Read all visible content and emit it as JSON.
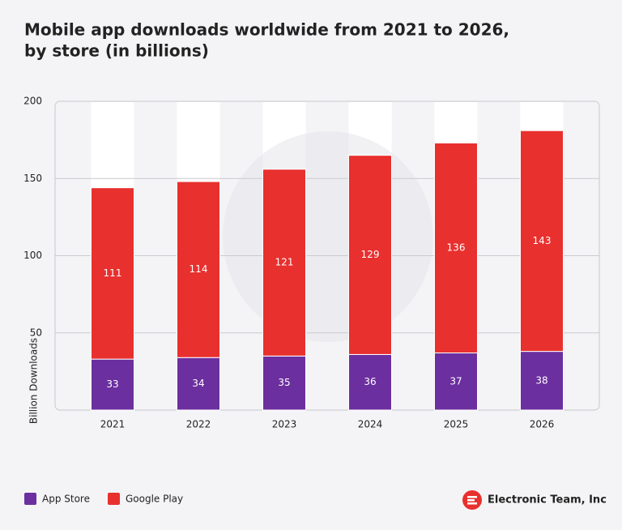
{
  "chart_data": {
    "type": "stacked_bar",
    "title": [
      "Mobile app downloads worldwide from 2021 to 2026,",
      "by store (in billions)"
    ],
    "y_label": "Billion Downloads",
    "categories": [
      "2021",
      "2022",
      "2023",
      "2024",
      "2025",
      "2026"
    ],
    "series": [
      {
        "name": "App Store",
        "color": "#6b2f9f",
        "values": [
          33,
          34,
          35,
          36,
          37,
          38
        ]
      },
      {
        "name": "Google Play",
        "color": "#e8302e",
        "values": [
          111,
          114,
          121,
          129,
          136,
          143
        ]
      }
    ],
    "ylim": [
      0,
      200
    ],
    "yticks": [
      50,
      100,
      150,
      200
    ],
    "grid": true,
    "brand": "Electronic Team, Inc"
  }
}
